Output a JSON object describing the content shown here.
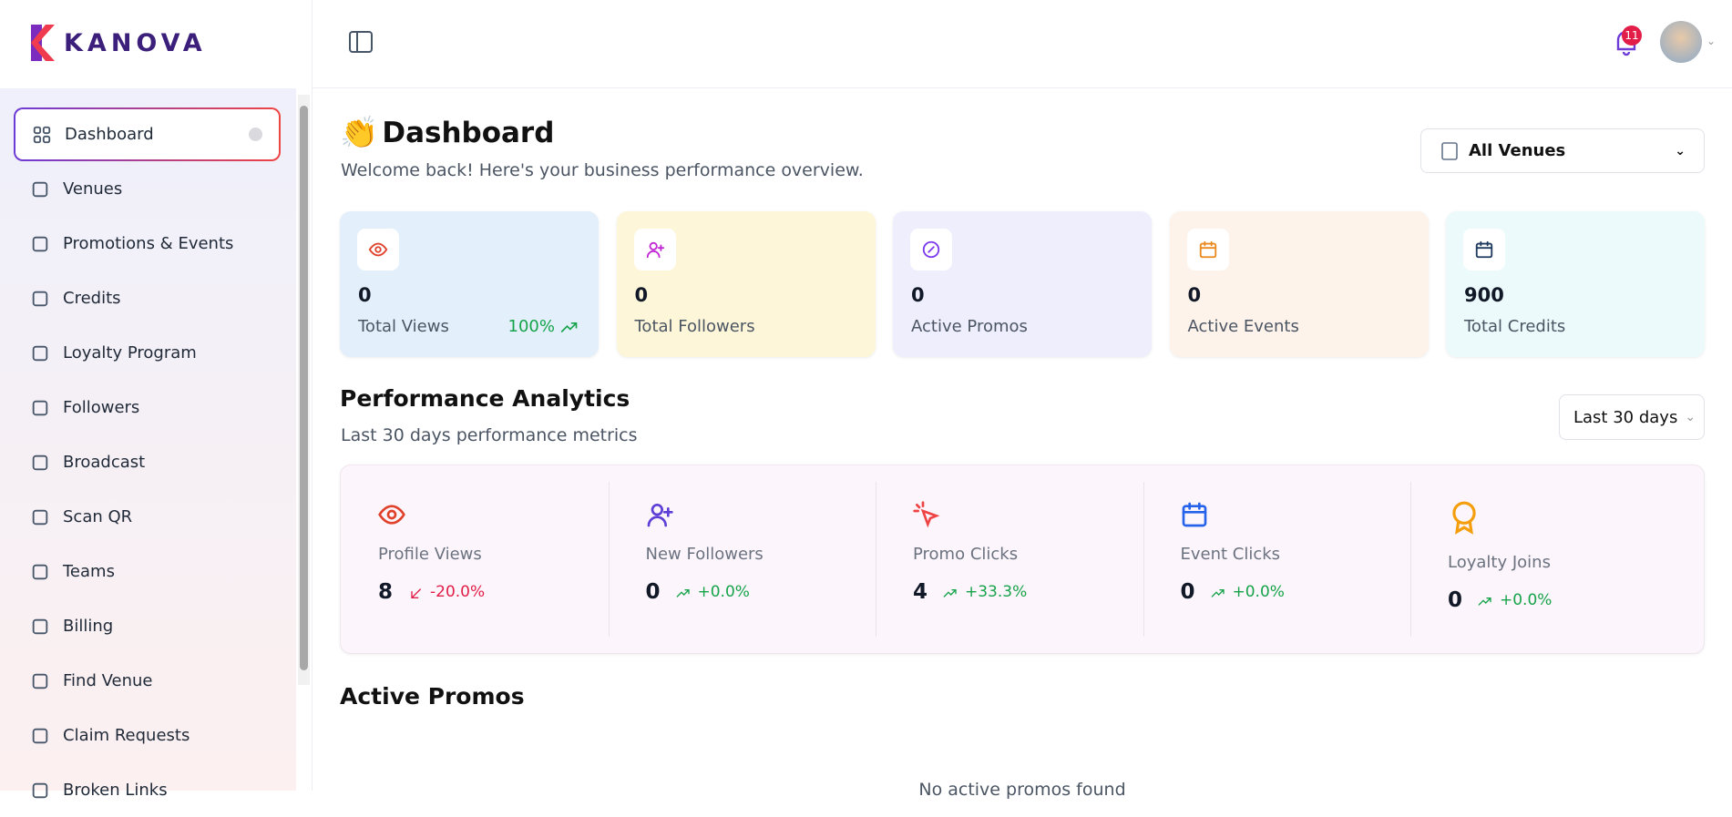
{
  "brand": "KANOVA",
  "notifications": "11",
  "nav": [
    "Dashboard",
    "Venues",
    "Promotions & Events",
    "Credits",
    "Loyalty Program",
    "Followers",
    "Broadcast",
    "Scan QR",
    "Teams",
    "Billing",
    "Find Venue",
    "Claim Requests",
    "Broken Links"
  ],
  "header": {
    "title": "Dashboard",
    "subtitle": "Welcome back! Here's your business performance overview."
  },
  "venue_filter": "All Venues",
  "stats": [
    {
      "value": 0,
      "label": "Total Views",
      "trend": "100%"
    },
    {
      "value": 0,
      "label": "Total Followers"
    },
    {
      "value": 0,
      "label": "Active Promos"
    },
    {
      "value": 0,
      "label": "Active Events"
    },
    {
      "value": 900,
      "label": "Total Credits"
    }
  ],
  "analytics": {
    "title": "Performance Analytics",
    "subtitle": "Last 30 days performance metrics",
    "range": "Last 30 days",
    "metrics": [
      {
        "label": "Profile Views",
        "value": 8,
        "change": "-20.0%"
      },
      {
        "label": "New Followers",
        "value": 0,
        "change": "+0.0%"
      },
      {
        "label": "Promo Clicks",
        "value": 4,
        "change": "+33.3%"
      },
      {
        "label": "Event Clicks",
        "value": 0,
        "change": "+0.0%"
      },
      {
        "label": "Loyalty Joins",
        "value": 0,
        "change": "+0.0%"
      }
    ]
  },
  "promos": {
    "title": "Active Promos",
    "empty": "No active promos found"
  }
}
